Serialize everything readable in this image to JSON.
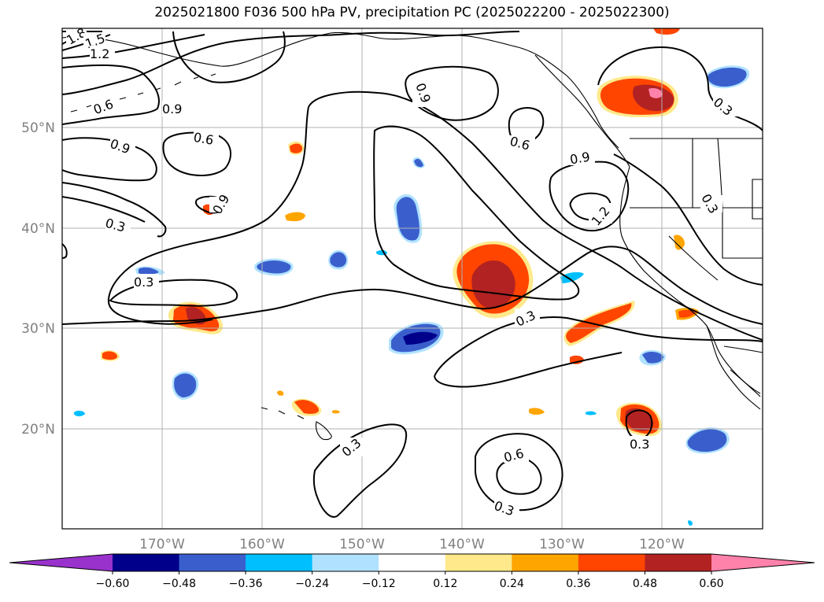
{
  "title": "2025021800 F036 500 hPa PV, precipitation PC (2025022200 - 2025022300)",
  "lat_labels": [
    "50°N",
    "40°N",
    "30°N",
    "20°N"
  ],
  "lon_labels": [
    "170°W",
    "160°W",
    "150°W",
    "140°W",
    "130°W",
    "120°W"
  ],
  "colorbar": {
    "ticks": [
      "−0.60",
      "−0.48",
      "−0.36",
      "−0.24",
      "−0.12",
      "0.12",
      "0.24",
      "0.36",
      "0.48",
      "0.60"
    ],
    "colors": [
      "#9932cc",
      "#00008b",
      "#3a5fcd",
      "#00bfff",
      "#b0e2ff",
      "#ffffff",
      "#ffe98a",
      "#ffa500",
      "#ff4500",
      "#b22222",
      "#ff82ab"
    ]
  },
  "contour_labels": [
    "1.8",
    "1.5",
    "1.2",
    "0.6",
    "0.9",
    "0.9",
    "0.6",
    "0.9",
    "0.6",
    "0.9",
    "0.9",
    "1.2",
    "0.3",
    "0.3",
    "0.3",
    "0.3",
    "0.6",
    "0.3",
    "0.3",
    "0.3",
    "0.3"
  ],
  "features": {
    "contour_line_color": "#000000",
    "gridline_color": "#b0b0b0",
    "coastline_color": "#000000"
  }
}
